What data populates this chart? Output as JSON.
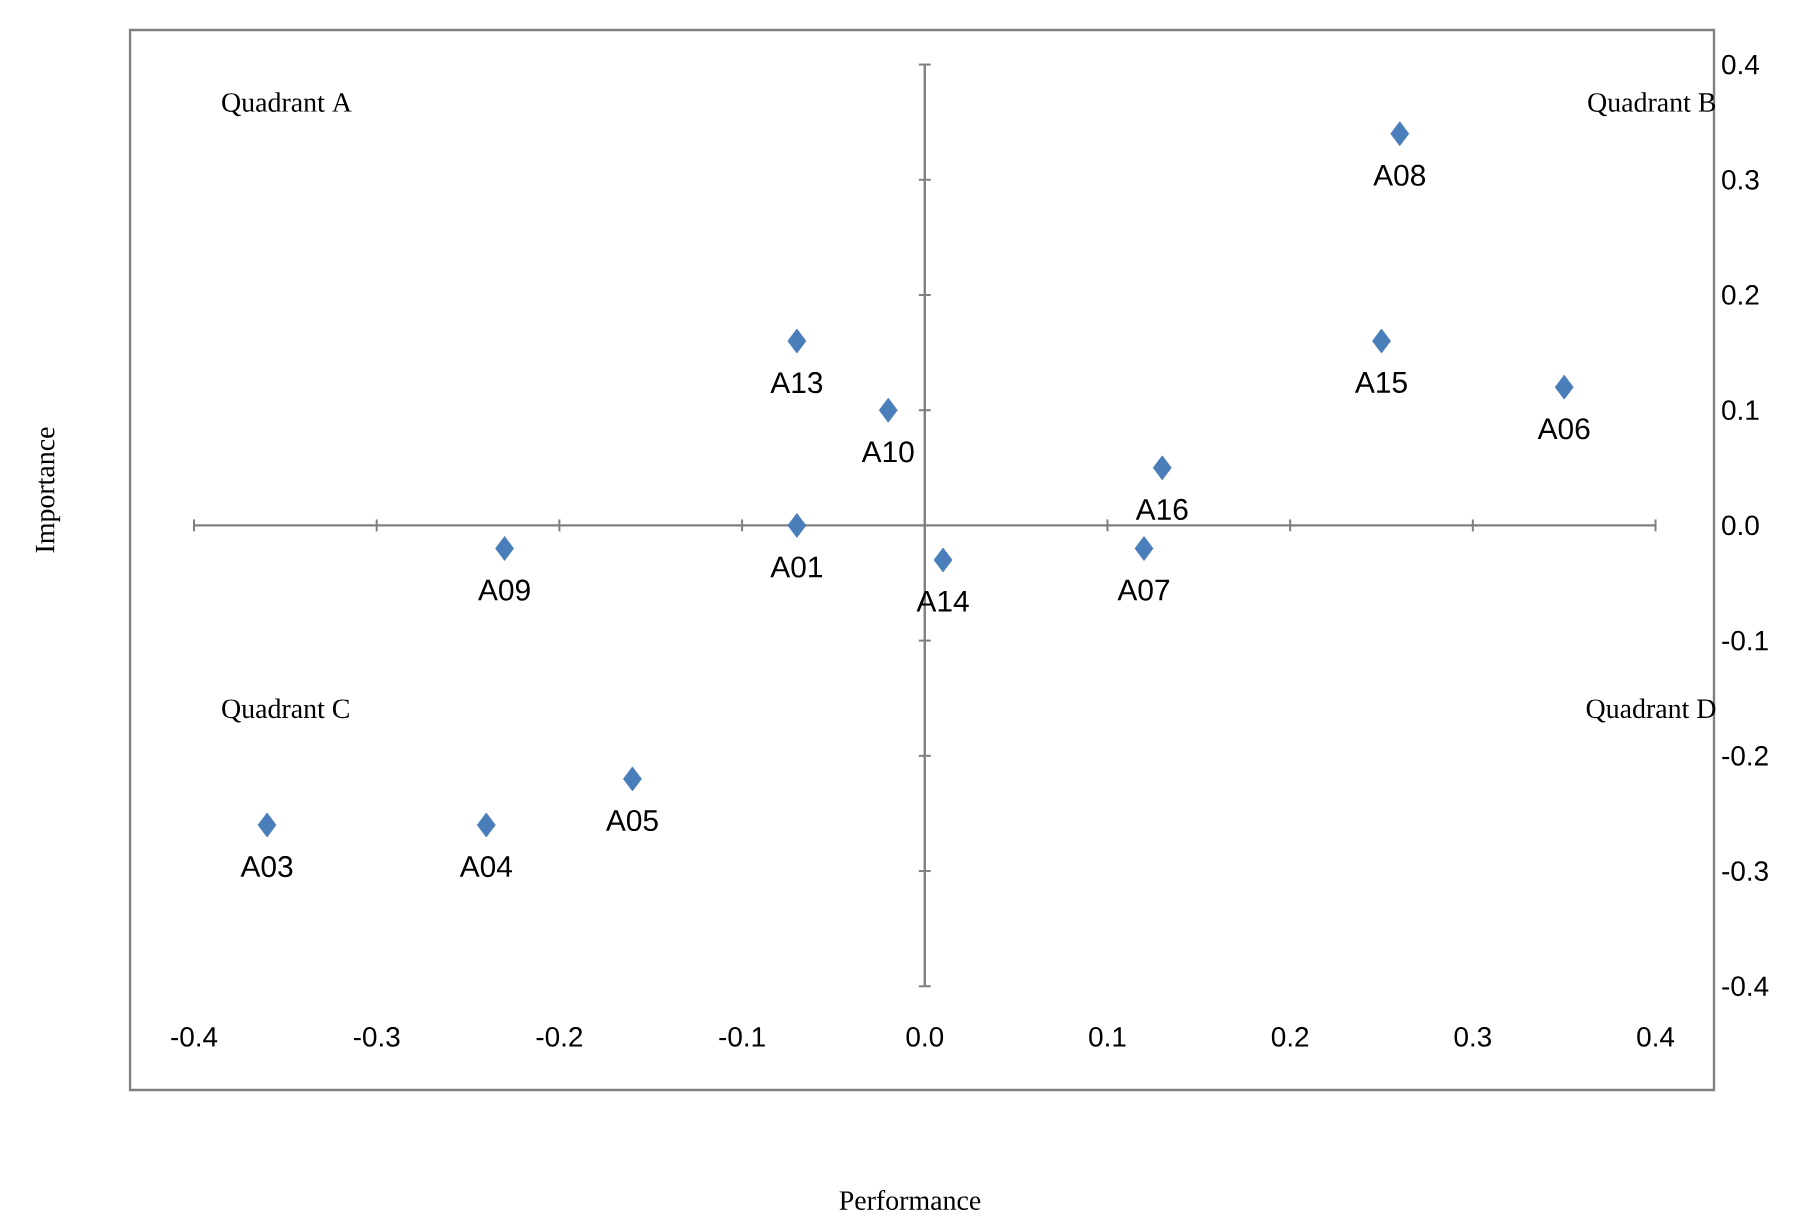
{
  "chart_data": {
    "type": "scatter",
    "xlabel": "Performance",
    "ylabel": "Importance",
    "x": [
      0.26,
      0.25,
      0.35,
      -0.07,
      -0.02,
      0.13,
      -0.07,
      -0.23,
      0.01,
      0.12,
      -0.16,
      -0.36,
      -0.24
    ],
    "series": [
      {
        "color": "#4a7ebb",
        "values": [
          0.34,
          0.16,
          0.12,
          0.16,
          0.1,
          0.05,
          0.0,
          -0.02,
          -0.03,
          -0.02,
          -0.22,
          -0.26,
          -0.26
        ]
      }
    ],
    "marker": "diamond",
    "xlim": [
      -0.435,
      0.432
    ],
    "ylim": [
      -0.49,
      0.43
    ],
    "xticks": [
      {
        "value": -0.4,
        "label": "-0.4"
      },
      {
        "value": -0.3,
        "label": "-0.3"
      },
      {
        "value": -0.2,
        "label": "-0.2"
      },
      {
        "value": -0.1,
        "label": "-0.1"
      },
      {
        "value": 0,
        "label": "0.0"
      },
      {
        "value": 0.1,
        "label": "0.1"
      },
      {
        "value": 0.2,
        "label": "0.2"
      },
      {
        "value": 0.3,
        "label": "0.3"
      },
      {
        "value": 0.4,
        "label": "0.4"
      }
    ],
    "yticks": [
      {
        "value": -0.4,
        "label": "-0.4"
      },
      {
        "value": -0.3,
        "label": "-0.3"
      },
      {
        "value": -0.2,
        "label": "-0.2"
      },
      {
        "value": -0.1,
        "label": "-0.1"
      },
      {
        "value": 0,
        "label": "0.0"
      },
      {
        "value": 0.1,
        "label": "0.1"
      },
      {
        "value": 0.2,
        "label": "0.2"
      },
      {
        "value": 0.3,
        "label": "0.3"
      },
      {
        "value": 0.4,
        "label": "0.4"
      }
    ],
    "annotations": [
      "Quadrant A",
      "Quadrant B",
      "Quadrant C",
      "Quadrant D",
      {
        "text": "A08",
        "x": 0.26,
        "y": 0.34
      },
      {
        "text": "A15",
        "x": 0.25,
        "y": 0.16
      },
      {
        "text": "A06",
        "x": 0.35,
        "y": 0.12
      },
      {
        "text": "A13",
        "x": -0.07,
        "y": 0.16
      },
      {
        "text": "A10",
        "x": -0.02,
        "y": 0.1
      },
      {
        "text": "A16",
        "x": 0.13,
        "y": 0.05
      },
      {
        "text": "A01",
        "x": -0.07,
        "y": 0.0
      },
      {
        "text": "A09",
        "x": -0.23,
        "y": -0.02
      },
      {
        "text": "A14",
        "x": 0.01,
        "y": -0.03
      },
      {
        "text": "A07",
        "x": 0.12,
        "y": -0.02
      },
      {
        "text": "A05",
        "x": -0.16,
        "y": -0.22
      },
      {
        "text": "A03",
        "x": -0.36,
        "y": -0.26
      },
      {
        "text": "A04",
        "x": -0.24,
        "y": -0.26
      }
    ]
  }
}
